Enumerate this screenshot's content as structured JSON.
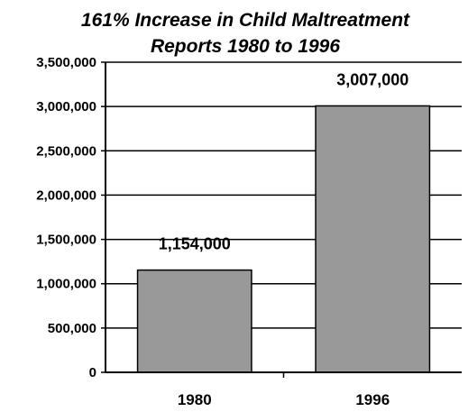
{
  "chart_data": {
    "type": "bar",
    "title_line1": "161% Increase in Child Maltreatment",
    "title_line2": "Reports 1980 to 1996",
    "categories": [
      "1980",
      "1996"
    ],
    "values": [
      1154000,
      3007000
    ],
    "data_labels": [
      "1,154,000",
      "3,007,000"
    ],
    "ylim": [
      0,
      3500000
    ],
    "y_ticks": [
      0,
      500000,
      1000000,
      1500000,
      2000000,
      2500000,
      3000000,
      3500000
    ],
    "y_tick_labels": [
      "0",
      "500,000",
      "1,000,000",
      "1,500,000",
      "2,000,000",
      "2,500,000",
      "3,000,000",
      "3,500,000"
    ],
    "grid": true,
    "bar_color": "#999999",
    "xlabel": "",
    "ylabel": ""
  }
}
